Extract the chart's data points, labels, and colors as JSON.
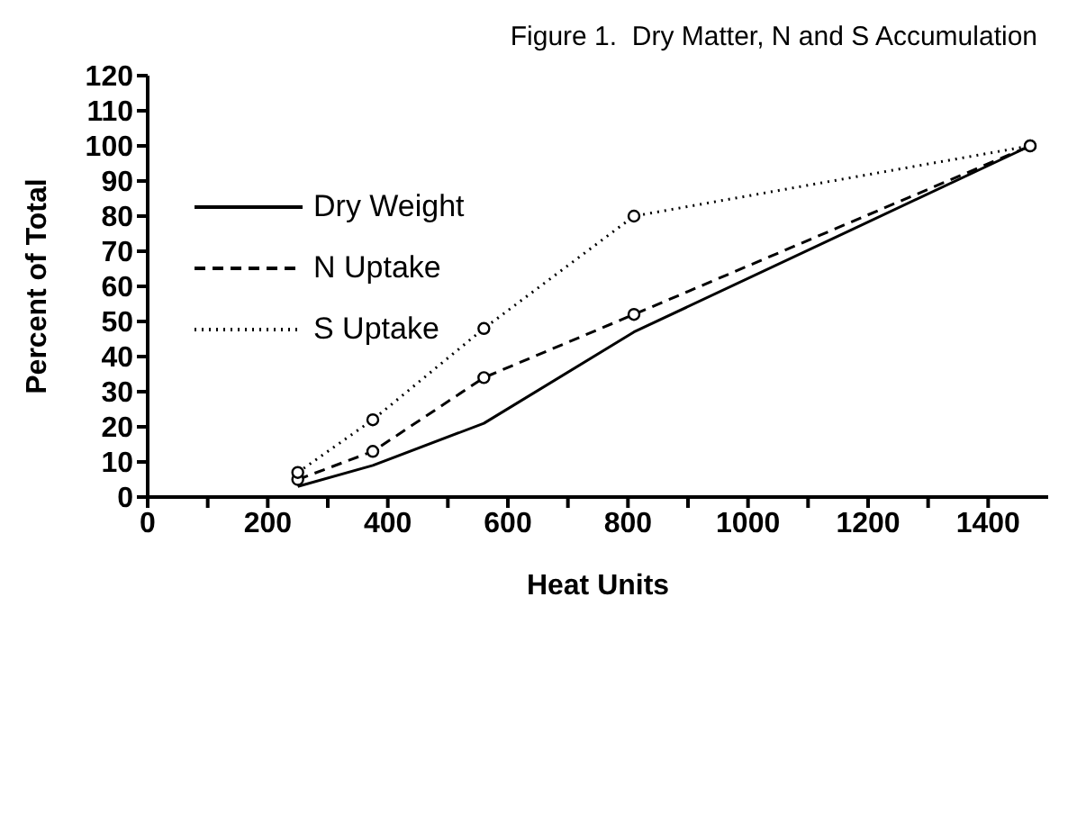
{
  "chart_data": {
    "type": "line",
    "title": "Figure 1.  Dry Matter, N and S Accumulation",
    "xlabel": "Heat Units",
    "ylabel": "Percent of Total",
    "x": [
      250,
      375,
      560,
      810,
      1470
    ],
    "series": [
      {
        "name": "Dry Weight",
        "color": "#000000",
        "values": [
          3,
          9,
          21,
          47,
          100
        ],
        "line_style": "solid",
        "marker": "none"
      },
      {
        "name": "N Uptake",
        "color": "#000000",
        "values": [
          5,
          13,
          34,
          52,
          100
        ],
        "line_style": "dashed",
        "marker": "circle"
      },
      {
        "name": "S Uptake",
        "color": "#000000",
        "values": [
          7,
          22,
          48,
          80,
          100
        ],
        "line_style": "dotted",
        "marker": "circle"
      }
    ],
    "xlim": [
      0,
      1500
    ],
    "xticks": [
      0,
      {
        "value": 100,
        "label": null
      },
      200,
      {
        "value": 300,
        "label": null
      },
      400,
      {
        "value": 500,
        "label": null
      },
      600,
      {
        "value": 700,
        "label": null
      },
      800,
      {
        "value": 900,
        "label": null
      },
      1000,
      {
        "value": 1100,
        "label": null
      },
      1200,
      {
        "value": 1300,
        "label": null
      },
      1400
    ],
    "ylim": [
      0,
      120
    ],
    "yticks": [
      0,
      10,
      20,
      30,
      40,
      50,
      60,
      70,
      80,
      90,
      100,
      110,
      120
    ],
    "grid": false,
    "legend": "top left"
  }
}
